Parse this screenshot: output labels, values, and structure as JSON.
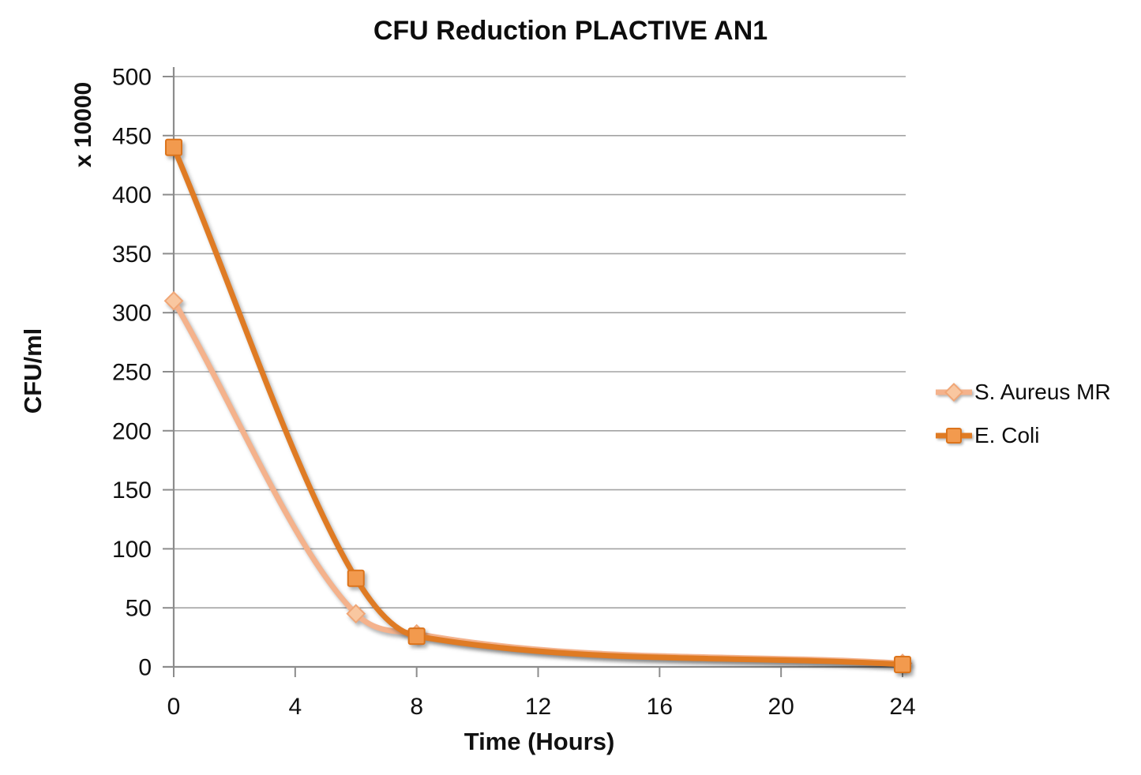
{
  "chart_data": {
    "type": "line",
    "title": "CFU Reduction PLACTIVE AN1",
    "xlabel": "Time (Hours)",
    "ylabel": "CFU/ml",
    "ylabel_unit": "x 10000",
    "x": [
      0,
      6,
      8,
      24
    ],
    "series": [
      {
        "name": "S. Aureus MR",
        "values": [
          310,
          45,
          28,
          3
        ],
        "line_color": "#F4B28C",
        "marker": "diamond",
        "marker_fill": "#F9C7A0",
        "marker_stroke": "#F0A676"
      },
      {
        "name": "E. Coli",
        "values": [
          440,
          75,
          26,
          2
        ],
        "line_color": "#DF7B24",
        "marker": "square",
        "marker_fill": "#F29A4E",
        "marker_stroke": "#DC741C"
      }
    ],
    "xlim": [
      0,
      24
    ],
    "ylim": [
      0,
      500
    ],
    "x_ticks": [
      0,
      4,
      8,
      12,
      16,
      20,
      24
    ],
    "y_ticks": [
      0,
      50,
      100,
      150,
      200,
      250,
      300,
      350,
      400,
      450,
      500
    ],
    "grid": "horizontal",
    "gridline_color": "#A3A3A3",
    "axis_color": "#8C8C8C",
    "legend_position": "right"
  }
}
